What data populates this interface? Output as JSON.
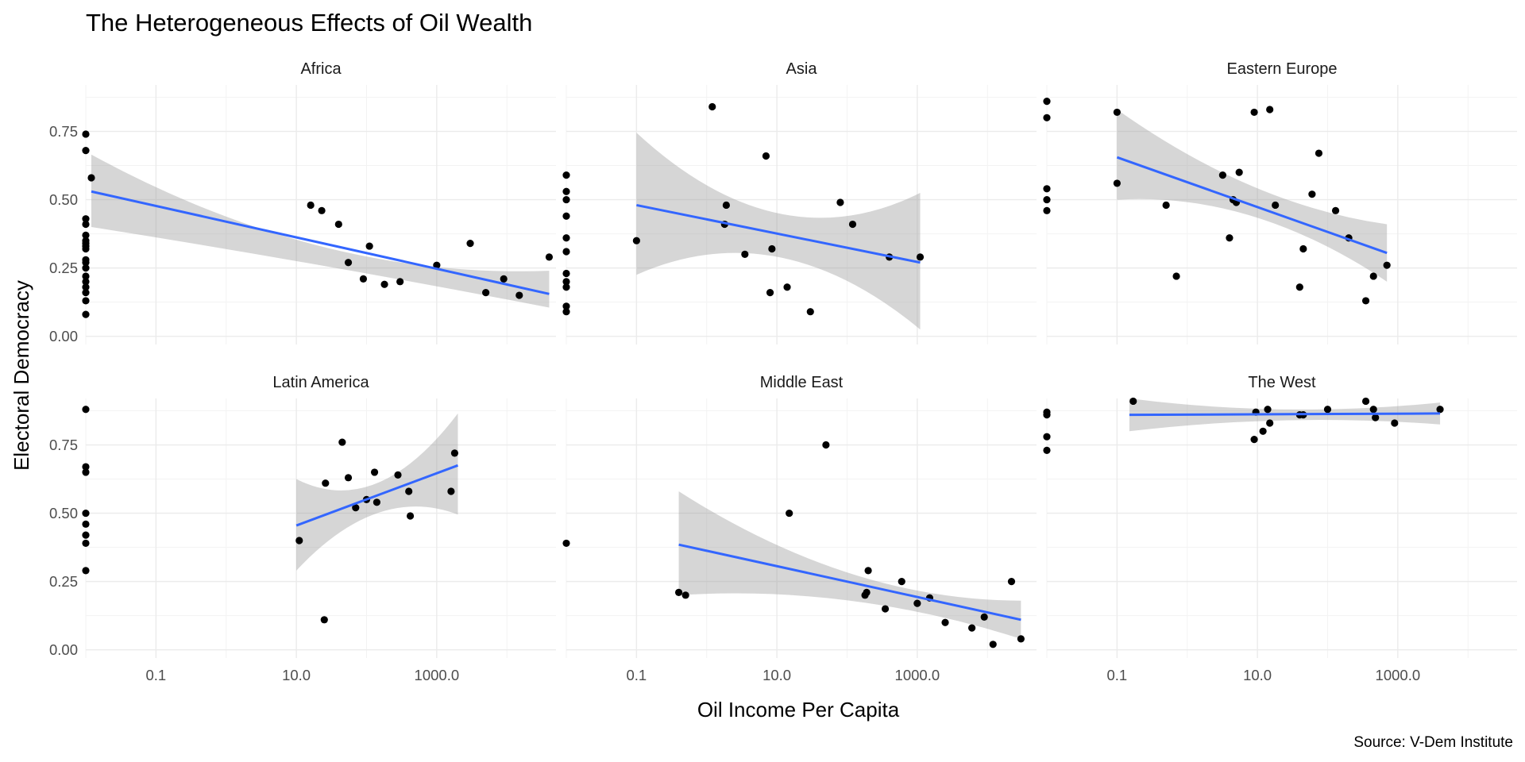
{
  "chart_data": {
    "type": "scatter",
    "title": "The Heterogeneous Effects of Oil Wealth",
    "xlabel": "Oil Income Per Capita",
    "ylabel": "Electoral Democracy",
    "caption": "Source: V-Dem Institute",
    "x_scale": "log10",
    "x_ticks": [
      0.1,
      10.0,
      1000.0
    ],
    "x_tick_labels": [
      "0.1",
      "10.0",
      "1000.0"
    ],
    "xlim": [
      0.01,
      50000
    ],
    "y_ticks": [
      0,
      0.25,
      0.5,
      0.75
    ],
    "y_tick_labels": [
      "0.00",
      "0.25",
      "0.50",
      "0.75"
    ],
    "ylim": [
      -0.03,
      0.92
    ],
    "grid": true,
    "colors": {
      "point": "#000000",
      "fit_line": "#3366FF",
      "ribbon": "#999999",
      "panel_background": "#ffffff",
      "grid": "#ebebeb"
    },
    "facets": [
      {
        "name": "Africa",
        "zero_values": [
          0.74,
          0.68,
          0.43,
          0.41,
          0.37,
          0.35,
          0.34,
          0.33,
          0.32,
          0.28,
          0.27,
          0.25,
          0.22,
          0.2,
          0.18,
          0.16,
          0.13,
          0.08
        ],
        "points": [
          [
            0.012,
            0.58
          ],
          [
            16,
            0.48
          ],
          [
            23,
            0.46
          ],
          [
            40,
            0.41
          ],
          [
            55,
            0.27
          ],
          [
            90,
            0.21
          ],
          [
            110,
            0.33
          ],
          [
            180,
            0.19
          ],
          [
            300,
            0.2
          ],
          [
            1000,
            0.26
          ],
          [
            3000,
            0.34
          ],
          [
            5000,
            0.16
          ],
          [
            9000,
            0.21
          ],
          [
            15000,
            0.15
          ],
          [
            40000,
            0.29
          ]
        ],
        "fit": {
          "x": [
            0.012,
            40000
          ],
          "y": [
            0.53,
            0.155
          ],
          "ci_low": [
            0.4,
            0.105
          ],
          "ci_high": [
            0.665,
            0.24
          ],
          "ci_mid_low": 0.26,
          "ci_mid_high": 0.33
        }
      },
      {
        "name": "Asia",
        "zero_values": [
          0.59,
          0.53,
          0.5,
          0.44,
          0.36,
          0.31,
          0.23,
          0.2,
          0.18,
          0.11,
          0.09
        ],
        "points": [
          [
            0.1,
            0.35
          ],
          [
            1.2,
            0.84
          ],
          [
            1.8,
            0.41
          ],
          [
            1.9,
            0.48
          ],
          [
            3.5,
            0.3
          ],
          [
            7,
            0.66
          ],
          [
            8,
            0.16
          ],
          [
            8.5,
            0.32
          ],
          [
            14,
            0.18
          ],
          [
            30,
            0.09
          ],
          [
            80,
            0.49
          ],
          [
            120,
            0.41
          ],
          [
            400,
            0.29
          ],
          [
            1100,
            0.29
          ]
        ],
        "fit": {
          "x": [
            0.1,
            1100
          ],
          "y": [
            0.48,
            0.27
          ],
          "ci_low": [
            0.225,
            0.025
          ],
          "ci_high": [
            0.745,
            0.525
          ],
          "ci_mid_low": 0.29,
          "ci_mid_high": 0.45
        }
      },
      {
        "name": "Eastern Europe",
        "zero_values": [
          0.86,
          0.8,
          0.54,
          0.5,
          0.46
        ],
        "points": [
          [
            0.1,
            0.82
          ],
          [
            0.1,
            0.56
          ],
          [
            0.5,
            0.48
          ],
          [
            0.7,
            0.22
          ],
          [
            3.2,
            0.59
          ],
          [
            4,
            0.36
          ],
          [
            4.5,
            0.5
          ],
          [
            5,
            0.49
          ],
          [
            5.5,
            0.6
          ],
          [
            9,
            0.82
          ],
          [
            15,
            0.83
          ],
          [
            18,
            0.48
          ],
          [
            40,
            0.18
          ],
          [
            45,
            0.32
          ],
          [
            60,
            0.52
          ],
          [
            75,
            0.67
          ],
          [
            130,
            0.46
          ],
          [
            200,
            0.36
          ],
          [
            350,
            0.13
          ],
          [
            450,
            0.22
          ],
          [
            700,
            0.26
          ]
        ],
        "fit": {
          "x": [
            0.1,
            700
          ],
          "y": [
            0.655,
            0.305
          ],
          "ci_low": [
            0.5,
            0.2
          ],
          "ci_high": [
            0.83,
            0.41
          ],
          "ci_mid_low": 0.44,
          "ci_mid_high": 0.55
        }
      },
      {
        "name": "Latin America",
        "zero_values": [
          0.88,
          0.67,
          0.65,
          0.5,
          0.46,
          0.42,
          0.39,
          0.29
        ],
        "points": [
          [
            11,
            0.4
          ],
          [
            25,
            0.11
          ],
          [
            26,
            0.61
          ],
          [
            45,
            0.76
          ],
          [
            55,
            0.63
          ],
          [
            70,
            0.52
          ],
          [
            100,
            0.55
          ],
          [
            130,
            0.65
          ],
          [
            140,
            0.54
          ],
          [
            280,
            0.64
          ],
          [
            400,
            0.58
          ],
          [
            420,
            0.49
          ],
          [
            1600,
            0.58
          ],
          [
            1800,
            0.72
          ]
        ],
        "fit": {
          "x": [
            10,
            2000
          ],
          "y": [
            0.455,
            0.675
          ],
          "ci_low": [
            0.29,
            0.495
          ],
          "ci_high": [
            0.625,
            0.865
          ],
          "ci_mid_low": 0.5,
          "ci_mid_high": 0.61
        }
      },
      {
        "name": "Middle East",
        "zero_values": [
          0.39
        ],
        "points": [
          [
            0.4,
            0.21
          ],
          [
            0.5,
            0.2
          ],
          [
            15,
            0.5
          ],
          [
            50,
            0.75
          ],
          [
            180,
            0.2
          ],
          [
            190,
            0.21
          ],
          [
            200,
            0.29
          ],
          [
            350,
            0.15
          ],
          [
            600,
            0.25
          ],
          [
            1000,
            0.17
          ],
          [
            1500,
            0.19
          ],
          [
            2500,
            0.1
          ],
          [
            6000,
            0.08
          ],
          [
            9000,
            0.12
          ],
          [
            12000,
            0.02
          ],
          [
            22000,
            0.25
          ],
          [
            30000,
            0.04
          ]
        ],
        "fit": {
          "x": [
            0.4,
            30000
          ],
          "y": [
            0.385,
            0.11
          ],
          "ci_low": [
            0.2,
            0.04
          ],
          "ci_high": [
            0.58,
            0.18
          ],
          "ci_mid_low": 0.18,
          "ci_mid_high": 0.28
        }
      },
      {
        "name": "The West",
        "zero_values": [
          0.87,
          0.86,
          0.78,
          0.73
        ],
        "points": [
          [
            0.17,
            0.91
          ],
          [
            9,
            0.77
          ],
          [
            9.5,
            0.87
          ],
          [
            12,
            0.8
          ],
          [
            14,
            0.88
          ],
          [
            15,
            0.83
          ],
          [
            40,
            0.86
          ],
          [
            45,
            0.86
          ],
          [
            100,
            0.88
          ],
          [
            350,
            0.91
          ],
          [
            450,
            0.88
          ],
          [
            480,
            0.85
          ],
          [
            900,
            0.83
          ],
          [
            4000,
            0.88
          ]
        ],
        "fit": {
          "x": [
            0.15,
            4000
          ],
          "y": [
            0.86,
            0.865
          ],
          "ci_low": [
            0.8,
            0.825
          ],
          "ci_high": [
            0.92,
            0.905
          ],
          "ci_mid_low": 0.84,
          "ci_mid_high": 0.88
        }
      }
    ]
  }
}
